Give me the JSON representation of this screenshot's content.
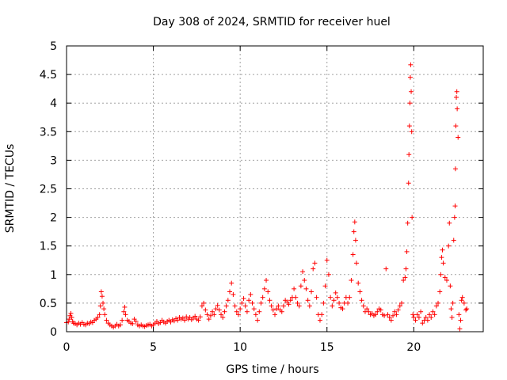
{
  "chart_data": {
    "type": "scatter",
    "title": "Day 308 of 2024, SRMTID for receiver huel",
    "xlabel": "GPS time / hours",
    "ylabel": "SRMTID / TECUs",
    "xlim": [
      0,
      24
    ],
    "ylim": [
      0,
      5
    ],
    "grid": true,
    "marker": "plus",
    "color": "#ff0000",
    "x_ticks": [
      0,
      5,
      10,
      15,
      20
    ],
    "x_tick_labels": [
      "0",
      "5",
      "10",
      "15",
      "20"
    ],
    "y_ticks": [
      0,
      0.5,
      1,
      1.5,
      2,
      2.5,
      3,
      3.5,
      4,
      4.5,
      5
    ],
    "y_tick_labels": [
      "0",
      "0.5",
      "1",
      "1.5",
      "2",
      "2.5",
      "3",
      "3.5",
      "4",
      "4.5",
      "5"
    ],
    "series": [
      {
        "name": "SRMTID",
        "points": [
          [
            0.0,
            0.16
          ],
          [
            0.1,
            0.17
          ],
          [
            0.15,
            0.22
          ],
          [
            0.2,
            0.28
          ],
          [
            0.25,
            0.32
          ],
          [
            0.3,
            0.25
          ],
          [
            0.35,
            0.18
          ],
          [
            0.4,
            0.15
          ],
          [
            0.5,
            0.14
          ],
          [
            0.6,
            0.12
          ],
          [
            0.7,
            0.15
          ],
          [
            0.8,
            0.13
          ],
          [
            0.9,
            0.16
          ],
          [
            1.0,
            0.13
          ],
          [
            1.1,
            0.12
          ],
          [
            1.2,
            0.15
          ],
          [
            1.3,
            0.14
          ],
          [
            1.4,
            0.17
          ],
          [
            1.5,
            0.16
          ],
          [
            1.6,
            0.2
          ],
          [
            1.7,
            0.22
          ],
          [
            1.8,
            0.25
          ],
          [
            1.9,
            0.3
          ],
          [
            1.95,
            0.45
          ],
          [
            2.0,
            0.7
          ],
          [
            2.05,
            0.62
          ],
          [
            2.1,
            0.5
          ],
          [
            2.15,
            0.4
          ],
          [
            2.2,
            0.3
          ],
          [
            2.3,
            0.2
          ],
          [
            2.4,
            0.15
          ],
          [
            2.5,
            0.12
          ],
          [
            2.6,
            0.1
          ],
          [
            2.7,
            0.08
          ],
          [
            2.8,
            0.1
          ],
          [
            2.9,
            0.13
          ],
          [
            3.0,
            0.1
          ],
          [
            3.1,
            0.12
          ],
          [
            3.2,
            0.2
          ],
          [
            3.3,
            0.35
          ],
          [
            3.35,
            0.43
          ],
          [
            3.4,
            0.3
          ],
          [
            3.5,
            0.2
          ],
          [
            3.6,
            0.18
          ],
          [
            3.7,
            0.15
          ],
          [
            3.8,
            0.14
          ],
          [
            3.9,
            0.22
          ],
          [
            4.0,
            0.18
          ],
          [
            4.1,
            0.12
          ],
          [
            4.2,
            0.1
          ],
          [
            4.3,
            0.12
          ],
          [
            4.4,
            0.1
          ],
          [
            4.5,
            0.09
          ],
          [
            4.6,
            0.11
          ],
          [
            4.7,
            0.12
          ],
          [
            4.8,
            0.13
          ],
          [
            4.9,
            0.1
          ],
          [
            5.0,
            0.12
          ],
          [
            5.1,
            0.15
          ],
          [
            5.2,
            0.18
          ],
          [
            5.3,
            0.14
          ],
          [
            5.4,
            0.16
          ],
          [
            5.5,
            0.2
          ],
          [
            5.6,
            0.17
          ],
          [
            5.7,
            0.15
          ],
          [
            5.8,
            0.18
          ],
          [
            5.9,
            0.2
          ],
          [
            6.0,
            0.17
          ],
          [
            6.1,
            0.21
          ],
          [
            6.2,
            0.19
          ],
          [
            6.3,
            0.23
          ],
          [
            6.4,
            0.2
          ],
          [
            6.5,
            0.25
          ],
          [
            6.6,
            0.22
          ],
          [
            6.7,
            0.24
          ],
          [
            6.8,
            0.2
          ],
          [
            6.9,
            0.26
          ],
          [
            7.0,
            0.22
          ],
          [
            7.1,
            0.25
          ],
          [
            7.2,
            0.21
          ],
          [
            7.3,
            0.24
          ],
          [
            7.4,
            0.27
          ],
          [
            7.5,
            0.22
          ],
          [
            7.6,
            0.2
          ],
          [
            7.7,
            0.26
          ],
          [
            7.8,
            0.45
          ],
          [
            7.9,
            0.5
          ],
          [
            8.0,
            0.38
          ],
          [
            8.1,
            0.3
          ],
          [
            8.2,
            0.22
          ],
          [
            8.3,
            0.28
          ],
          [
            8.4,
            0.35
          ],
          [
            8.5,
            0.3
          ],
          [
            8.6,
            0.4
          ],
          [
            8.7,
            0.46
          ],
          [
            8.8,
            0.38
          ],
          [
            8.9,
            0.3
          ],
          [
            9.0,
            0.25
          ],
          [
            9.1,
            0.35
          ],
          [
            9.2,
            0.45
          ],
          [
            9.3,
            0.55
          ],
          [
            9.4,
            0.7
          ],
          [
            9.5,
            0.85
          ],
          [
            9.6,
            0.65
          ],
          [
            9.7,
            0.45
          ],
          [
            9.8,
            0.35
          ],
          [
            9.9,
            0.3
          ],
          [
            10.0,
            0.4
          ],
          [
            10.1,
            0.5
          ],
          [
            10.2,
            0.58
          ],
          [
            10.3,
            0.45
          ],
          [
            10.4,
            0.35
          ],
          [
            10.5,
            0.55
          ],
          [
            10.6,
            0.65
          ],
          [
            10.7,
            0.5
          ],
          [
            10.8,
            0.4
          ],
          [
            10.9,
            0.3
          ],
          [
            11.0,
            0.2
          ],
          [
            11.1,
            0.35
          ],
          [
            11.2,
            0.5
          ],
          [
            11.3,
            0.6
          ],
          [
            11.4,
            0.75
          ],
          [
            11.5,
            0.9
          ],
          [
            11.6,
            0.7
          ],
          [
            11.7,
            0.55
          ],
          [
            11.8,
            0.45
          ],
          [
            11.9,
            0.38
          ],
          [
            12.0,
            0.3
          ],
          [
            12.1,
            0.4
          ],
          [
            12.2,
            0.45
          ],
          [
            12.3,
            0.38
          ],
          [
            12.4,
            0.35
          ],
          [
            12.5,
            0.45
          ],
          [
            12.6,
            0.55
          ],
          [
            12.7,
            0.52
          ],
          [
            12.8,
            0.48
          ],
          [
            12.9,
            0.55
          ],
          [
            13.0,
            0.6
          ],
          [
            13.1,
            0.75
          ],
          [
            13.2,
            0.6
          ],
          [
            13.3,
            0.5
          ],
          [
            13.4,
            0.45
          ],
          [
            13.5,
            0.8
          ],
          [
            13.6,
            1.05
          ],
          [
            13.7,
            0.9
          ],
          [
            13.8,
            0.75
          ],
          [
            13.9,
            0.55
          ],
          [
            14.0,
            0.45
          ],
          [
            14.1,
            0.7
          ],
          [
            14.2,
            1.1
          ],
          [
            14.3,
            1.2
          ],
          [
            14.4,
            0.6
          ],
          [
            14.5,
            0.3
          ],
          [
            14.6,
            0.2
          ],
          [
            14.7,
            0.3
          ],
          [
            14.8,
            0.5
          ],
          [
            14.9,
            0.8
          ],
          [
            15.0,
            1.25
          ],
          [
            15.1,
            1.0
          ],
          [
            15.2,
            0.6
          ],
          [
            15.3,
            0.45
          ],
          [
            15.4,
            0.55
          ],
          [
            15.5,
            0.68
          ],
          [
            15.6,
            0.6
          ],
          [
            15.7,
            0.5
          ],
          [
            15.8,
            0.42
          ],
          [
            15.9,
            0.4
          ],
          [
            16.0,
            0.5
          ],
          [
            16.1,
            0.6
          ],
          [
            16.2,
            0.5
          ],
          [
            16.3,
            0.6
          ],
          [
            16.4,
            0.9
          ],
          [
            16.5,
            1.35
          ],
          [
            16.55,
            1.75
          ],
          [
            16.6,
            1.92
          ],
          [
            16.65,
            1.6
          ],
          [
            16.7,
            1.2
          ],
          [
            16.8,
            0.85
          ],
          [
            16.9,
            0.7
          ],
          [
            17.0,
            0.55
          ],
          [
            17.1,
            0.45
          ],
          [
            17.2,
            0.35
          ],
          [
            17.3,
            0.4
          ],
          [
            17.4,
            0.35
          ],
          [
            17.5,
            0.3
          ],
          [
            17.6,
            0.32
          ],
          [
            17.7,
            0.28
          ],
          [
            17.8,
            0.3
          ],
          [
            17.9,
            0.35
          ],
          [
            18.0,
            0.4
          ],
          [
            18.1,
            0.38
          ],
          [
            18.2,
            0.3
          ],
          [
            18.3,
            0.28
          ],
          [
            18.4,
            1.1
          ],
          [
            18.5,
            0.3
          ],
          [
            18.6,
            0.25
          ],
          [
            18.7,
            0.2
          ],
          [
            18.8,
            0.28
          ],
          [
            18.9,
            0.35
          ],
          [
            19.0,
            0.3
          ],
          [
            19.1,
            0.38
          ],
          [
            19.2,
            0.45
          ],
          [
            19.3,
            0.5
          ],
          [
            19.4,
            0.9
          ],
          [
            19.5,
            0.95
          ],
          [
            19.55,
            1.1
          ],
          [
            19.6,
            1.4
          ],
          [
            19.65,
            1.9
          ],
          [
            19.7,
            2.6
          ],
          [
            19.72,
            3.1
          ],
          [
            19.75,
            3.6
          ],
          [
            19.78,
            4.0
          ],
          [
            19.8,
            4.45
          ],
          [
            19.82,
            4.67
          ],
          [
            19.85,
            4.2
          ],
          [
            19.88,
            3.5
          ],
          [
            19.9,
            2.0
          ],
          [
            19.95,
            0.3
          ],
          [
            20.0,
            0.25
          ],
          [
            20.1,
            0.2
          ],
          [
            20.2,
            0.3
          ],
          [
            20.3,
            0.25
          ],
          [
            20.4,
            0.35
          ],
          [
            20.5,
            0.15
          ],
          [
            20.6,
            0.2
          ],
          [
            20.7,
            0.25
          ],
          [
            20.8,
            0.2
          ],
          [
            20.9,
            0.3
          ],
          [
            21.0,
            0.25
          ],
          [
            21.1,
            0.35
          ],
          [
            21.2,
            0.3
          ],
          [
            21.3,
            0.45
          ],
          [
            21.4,
            0.5
          ],
          [
            21.5,
            0.7
          ],
          [
            21.55,
            1.0
          ],
          [
            21.6,
            1.3
          ],
          [
            21.65,
            1.43
          ],
          [
            21.7,
            1.2
          ],
          [
            21.8,
            0.95
          ],
          [
            21.9,
            0.9
          ],
          [
            22.0,
            1.5
          ],
          [
            22.05,
            1.9
          ],
          [
            22.1,
            0.8
          ],
          [
            22.15,
            0.4
          ],
          [
            22.2,
            0.25
          ],
          [
            22.25,
            0.5
          ],
          [
            22.3,
            1.6
          ],
          [
            22.35,
            2.0
          ],
          [
            22.38,
            2.2
          ],
          [
            22.4,
            2.85
          ],
          [
            22.42,
            3.6
          ],
          [
            22.45,
            4.1
          ],
          [
            22.48,
            4.2
          ],
          [
            22.5,
            3.9
          ],
          [
            22.55,
            3.4
          ],
          [
            22.6,
            0.3
          ],
          [
            22.65,
            0.05
          ],
          [
            22.7,
            0.2
          ],
          [
            22.75,
            0.55
          ],
          [
            22.8,
            0.6
          ],
          [
            22.9,
            0.5
          ],
          [
            23.0,
            0.38
          ],
          [
            23.05,
            0.4
          ]
        ]
      }
    ]
  }
}
